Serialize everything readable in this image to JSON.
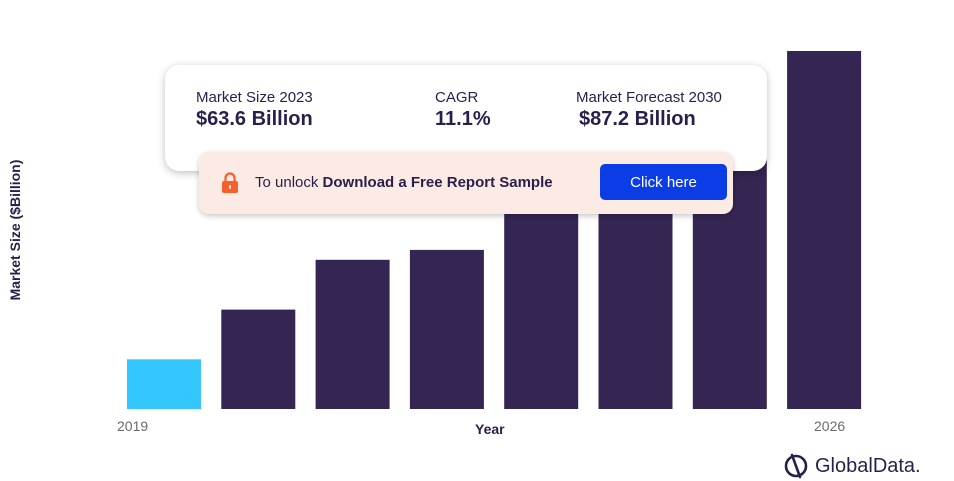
{
  "chart_data": {
    "type": "bar",
    "categories": [
      "2019",
      "",
      "",
      "",
      "",
      "",
      "",
      "2026"
    ],
    "values": [
      10,
      20,
      30,
      32,
      40,
      55,
      65,
      72
    ],
    "highlight_color": "#33c6ff",
    "bar_color": "#352552",
    "title": "",
    "xlabel": "Year",
    "ylabel": "Market Size ($Billion)",
    "ylim": [
      0,
      72
    ],
    "grid": false
  },
  "summary": {
    "market_size_label": "Market Size 2023",
    "market_size_value": "$63.6 Billion",
    "cagr_label": "CAGR",
    "cagr_value": "11.1%",
    "forecast_label": "Market Forecast 2030",
    "forecast_value": "$87.2 Billion"
  },
  "unlock": {
    "prefix": "To unlock ",
    "bold_text": "Download a Free Report Sample",
    "button_label": "Click here",
    "lock_icon": "lock-icon",
    "accent_color": "#f4612f"
  },
  "brand": {
    "logo_text": "GlobalData.",
    "logo_icon": "globaldata-logo-icon"
  }
}
